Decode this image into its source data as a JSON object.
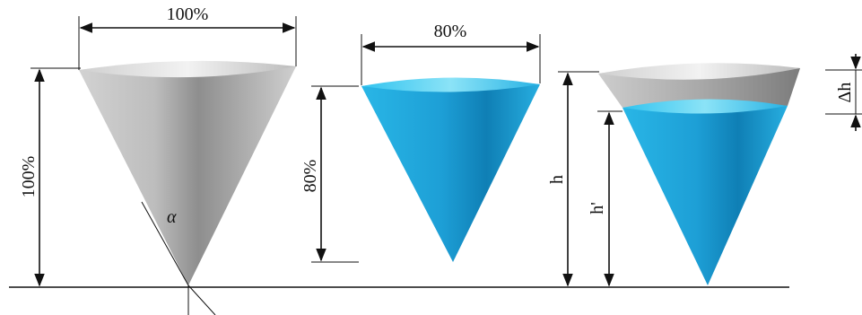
{
  "labels": {
    "cone1_top_width": "100%",
    "cone1_height": "100%",
    "cone1_angle": "α",
    "cone2_top_width": "80%",
    "cone2_height": "80%",
    "cone3_total_height": "h",
    "cone3_fill_height": "h'",
    "cone3_delta": "Δh"
  },
  "colors": {
    "empty_cone_light": "#e6e6e6",
    "empty_cone_dark": "#6e6e6e",
    "liquid_light": "#7fd8f2",
    "liquid_mid": "#27aee0",
    "liquid_dark": "#0d7db0",
    "line": "#111111"
  }
}
